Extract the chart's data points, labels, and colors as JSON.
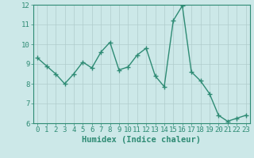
{
  "x": [
    0,
    1,
    2,
    3,
    4,
    5,
    6,
    7,
    8,
    9,
    10,
    11,
    12,
    13,
    14,
    15,
    16,
    17,
    18,
    19,
    20,
    21,
    22,
    23
  ],
  "y": [
    9.3,
    8.9,
    8.5,
    8.0,
    8.5,
    9.1,
    8.8,
    9.6,
    10.1,
    8.7,
    8.85,
    9.45,
    9.8,
    8.4,
    7.85,
    11.2,
    11.95,
    8.6,
    8.15,
    7.5,
    6.4,
    6.1,
    6.25,
    6.4
  ],
  "line_color": "#2e8b74",
  "marker": "+",
  "markersize": 4,
  "markeredgewidth": 1.0,
  "linewidth": 1.0,
  "background_color": "#cce8e8",
  "grid_color_major": "#b0cccc",
  "grid_color_minor": "#daeaea",
  "xlabel": "Humidex (Indice chaleur)",
  "ylim": [
    6,
    12
  ],
  "xlim": [
    -0.5,
    23.5
  ],
  "yticks": [
    6,
    7,
    8,
    9,
    10,
    11,
    12
  ],
  "xticks": [
    0,
    1,
    2,
    3,
    4,
    5,
    6,
    7,
    8,
    9,
    10,
    11,
    12,
    13,
    14,
    15,
    16,
    17,
    18,
    19,
    20,
    21,
    22,
    23
  ],
  "tick_color": "#2e8b74",
  "label_color": "#2e8b74",
  "axis_color": "#2e8b74",
  "xlabel_fontsize": 7.5,
  "tick_fontsize": 6.5
}
